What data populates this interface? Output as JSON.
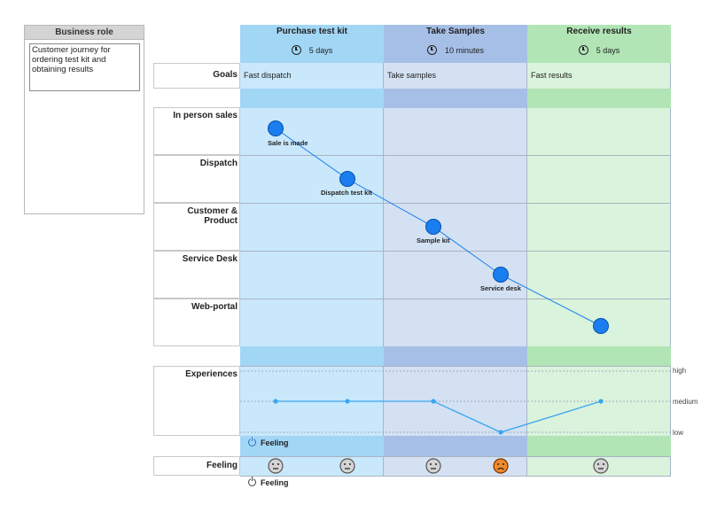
{
  "business_role": {
    "header": "Business role",
    "description": "Customer journey for ordering test kit and obtaining results"
  },
  "phases": [
    {
      "title": "Purchase test kit",
      "duration": "5 days",
      "goal": "Fast dispatch",
      "color": "#c9e8fb",
      "header_color": "#a2d6f5"
    },
    {
      "title": "Take Samples",
      "duration": "10 minutes",
      "goal": "Take samples",
      "color": "#d3e1f3",
      "header_color": "#a6bfe6"
    },
    {
      "title": "Receive results",
      "duration": "5 days",
      "goal": "Fast results",
      "color": "#d9f3dc",
      "header_color": "#b1e5b5"
    }
  ],
  "row_labels": {
    "goals": "Goals",
    "lanes": [
      "In person sales",
      "Dispatch",
      "Customer & Product",
      "Service Desk",
      "Web-portal"
    ],
    "experiences": "Experiences",
    "feeling": "Feeling"
  },
  "touchpoints": [
    {
      "label": "Sale is made",
      "phase": 0,
      "lane": 0,
      "color": "#1a7ef0"
    },
    {
      "label": "Dispatch test kit",
      "phase": 0,
      "lane": 1,
      "color": "#1a7ef0"
    },
    {
      "label": "Sample kit",
      "phase": 1,
      "lane": 2,
      "color": "#1a7ef0"
    },
    {
      "label": "Service desk",
      "phase": 1,
      "lane": 3,
      "color": "#1a7ef0"
    },
    {
      "label": "",
      "phase": 2,
      "lane": 4,
      "color": "#1a7ef0"
    }
  ],
  "experience_levels": [
    "high",
    "medium",
    "low"
  ],
  "experience_values": [
    "medium",
    "medium",
    "medium",
    "low",
    "medium"
  ],
  "experience_color": "#3aa6f0",
  "feelings": [
    "neutral",
    "neutral",
    "neutral",
    "sad",
    "neutral"
  ],
  "feeling_toggle_on": "Feeling",
  "feeling_toggle_off": "Feeling"
}
